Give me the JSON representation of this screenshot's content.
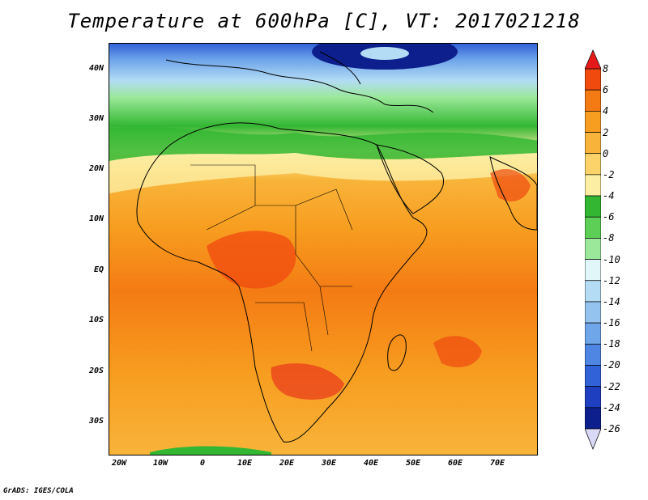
{
  "title": "Temperature at 600hPa [C], VT: 2017021218",
  "credit": "GrADS: IGES/COLA",
  "lat_labels": [
    "40N",
    "30N",
    "20N",
    "10N",
    "EQ",
    "10S",
    "20S",
    "30S"
  ],
  "lon_labels": [
    "20W",
    "10W",
    "0",
    "10E",
    "20E",
    "30E",
    "40E",
    "50E",
    "60E",
    "70E"
  ],
  "colorbar": {
    "labels": [
      "8",
      "6",
      "4",
      "2",
      "0",
      "-2",
      "-4",
      "-6",
      "-8",
      "-10",
      "-12",
      "-14",
      "-16",
      "-18",
      "-20",
      "-22",
      "-24",
      "-26"
    ],
    "colors": [
      "#e6191a",
      "#f04a0f",
      "#f47b14",
      "#f79d1f",
      "#f8b43a",
      "#fbd36a",
      "#fcefa4",
      "#33b733",
      "#5ecf56",
      "#9be89a",
      "#e0f6f9",
      "#b4dcf4",
      "#93c3ee",
      "#6fa6ea",
      "#4f86e3",
      "#3162d7",
      "#1d3fc0",
      "#0c1f8c",
      "#05085e"
    ]
  }
}
